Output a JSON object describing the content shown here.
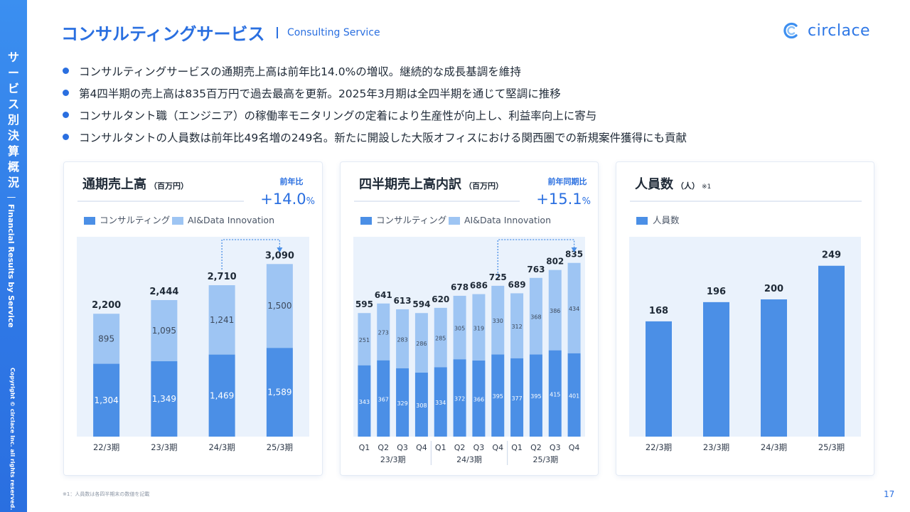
{
  "sidebar": {
    "title_jp": "サービス別決算概況",
    "title_en": "｜ Financial Results by Service",
    "copyright": "Copyright © circlace Inc. all rights reserved."
  },
  "header": {
    "title": "コンサルティングサービス",
    "subtitle": "Consulting Service",
    "logo_text": "circlace"
  },
  "bullets": [
    "コンサルティングサービスの通期売上高は前年比14.0%の増収。継続的な成長基調を維持",
    "第4四半期の売上高は835百万円で過去最高を更新。2025年3月期は全四半期を通じて堅調に推移",
    "コンサルタント職（エンジニア）の稼働率モニタリングの定着により生産性が向上し、利益率向上に寄与",
    "コンサルタントの人員数は前年比49名増の249名。新たに開設した大阪オフィスにおける関西圏での新規案件獲得にも貢献"
  ],
  "colors": {
    "primary": "#2a6fe0",
    "consulting": "#4b8fe6",
    "ai": "#9ec5f3",
    "plot_bg": "#eaf2fc",
    "text": "#1f2a37"
  },
  "chart_data": [
    {
      "type": "bar",
      "stacked": true,
      "title": "通期売上高",
      "unit": "（百万円）",
      "growth_label": "前年比",
      "growth_value": "+14.0",
      "growth_suffix": "%",
      "categories": [
        "22/3期",
        "23/3期",
        "24/3期",
        "25/3期"
      ],
      "series": [
        {
          "name": "コンサルティング",
          "values": [
            1304,
            1349,
            1469,
            1589
          ]
        },
        {
          "name": "AI&Data Innovation",
          "values": [
            895,
            1095,
            1241,
            1500
          ]
        }
      ],
      "totals": [
        2200,
        2444,
        2710,
        3090
      ],
      "ylim": [
        0,
        3500
      ]
    },
    {
      "type": "bar",
      "stacked": true,
      "title": "四半期売上高内訳",
      "unit": "（百万円）",
      "growth_label": "前年同期比",
      "growth_value": "+15.1",
      "growth_suffix": "%",
      "categories": [
        "Q1",
        "Q2",
        "Q3",
        "Q4",
        "Q1",
        "Q2",
        "Q3",
        "Q4",
        "Q1",
        "Q2",
        "Q3",
        "Q4"
      ],
      "groups": [
        "23/3期",
        "24/3期",
        "25/3期"
      ],
      "series": [
        {
          "name": "コンサルティング",
          "values": [
            343,
            367,
            329,
            308,
            334,
            372,
            366,
            395,
            377,
            395,
            415,
            401
          ]
        },
        {
          "name": "AI&Data Innovation",
          "values": [
            251,
            273,
            283,
            286,
            285,
            305,
            319,
            330,
            312,
            368,
            386,
            434
          ]
        }
      ],
      "totals": [
        595,
        641,
        613,
        594,
        620,
        678,
        686,
        725,
        689,
        763,
        802,
        835
      ],
      "ylim": [
        0,
        940
      ]
    },
    {
      "type": "bar",
      "title": "人員数",
      "unit": "（人）",
      "note_mark": "※1",
      "categories": [
        "22/3期",
        "23/3期",
        "24/3期",
        "25/3期"
      ],
      "series": [
        {
          "name": "人員数",
          "values": [
            168,
            196,
            200,
            249
          ]
        }
      ],
      "ylim": [
        0,
        285
      ]
    }
  ],
  "footer": {
    "footnote": "※1：人員数は各四半期末の数値を記載",
    "page_number": "17"
  }
}
